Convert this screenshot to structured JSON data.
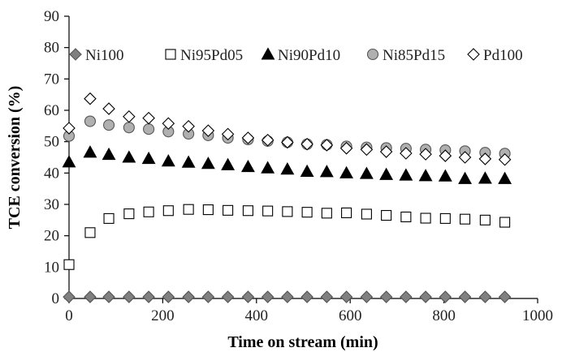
{
  "chart_data": {
    "type": "scatter",
    "title": "",
    "xlabel": "Time on stream (min)",
    "ylabel": "TCE conversion (%)",
    "xlim": [
      0,
      1000
    ],
    "ylim": [
      0,
      90
    ],
    "xticks": [
      0,
      200,
      400,
      600,
      800,
      1000
    ],
    "yticks": [
      0,
      10,
      20,
      30,
      40,
      50,
      60,
      70,
      80,
      90
    ],
    "grid": false,
    "legend_position": "top",
    "x": [
      0,
      45,
      85,
      128,
      170,
      212,
      255,
      297,
      339,
      382,
      424,
      466,
      508,
      550,
      592,
      635,
      677,
      719,
      761,
      803,
      845,
      888,
      930
    ],
    "series": [
      {
        "name": "Ni100",
        "marker": "diamond",
        "color": "#808080",
        "values": [
          0.5,
          0.5,
          0.5,
          0.5,
          0.5,
          0.5,
          0.5,
          0.5,
          0.5,
          0.5,
          0.5,
          0.5,
          0.5,
          0.5,
          0.5,
          0.5,
          0.5,
          0.5,
          0.5,
          0.5,
          0.5,
          0.5,
          0.5
        ]
      },
      {
        "name": "Ni95Pd05",
        "marker": "square-open",
        "color": "#000000",
        "values": [
          10.8,
          21.0,
          25.5,
          27.0,
          27.6,
          28.0,
          28.4,
          28.3,
          28.1,
          28.0,
          27.9,
          27.7,
          27.5,
          27.2,
          27.3,
          26.9,
          26.5,
          26.0,
          25.6,
          25.5,
          25.3,
          25.0,
          24.3
        ]
      },
      {
        "name": "Ni90Pd10",
        "marker": "triangle",
        "color": "#000000",
        "values": [
          43.5,
          46.6,
          45.9,
          45.0,
          44.6,
          43.8,
          43.4,
          43.0,
          42.6,
          42.0,
          41.6,
          41.2,
          40.5,
          40.4,
          40.0,
          39.8,
          39.5,
          39.3,
          39.1,
          39.0,
          38.2,
          38.3,
          38.2
        ]
      },
      {
        "name": "Ni85Pd15",
        "marker": "circle",
        "color": "#b0b0b0",
        "values": [
          51.8,
          56.5,
          55.3,
          54.5,
          54.0,
          53.2,
          52.5,
          52.0,
          51.2,
          50.7,
          50.2,
          49.8,
          49.2,
          49.0,
          48.5,
          48.2,
          48.0,
          47.8,
          47.5,
          47.3,
          47.0,
          46.5,
          46.2
        ]
      },
      {
        "name": "Pd100",
        "marker": "diamond-open",
        "color": "#000000",
        "values": [
          54.3,
          63.7,
          60.5,
          58.0,
          57.5,
          55.8,
          54.9,
          53.5,
          52.4,
          51.2,
          50.5,
          49.8,
          49.2,
          48.9,
          47.9,
          47.5,
          46.8,
          46.3,
          46.0,
          45.5,
          45.0,
          44.5,
          44.3
        ]
      }
    ]
  }
}
